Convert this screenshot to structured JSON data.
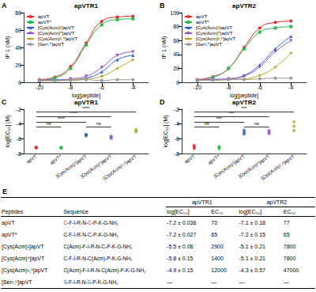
{
  "chart_data": [
    {
      "panel": "A",
      "title": "apVTR1",
      "type": "line",
      "x_label": "log[peptide]",
      "y_label": "IP 1 (nM)",
      "x": [
        -10,
        -9,
        -8,
        -7,
        -6,
        -5,
        -4
      ],
      "series": [
        {
          "name": "apVT",
          "color": "#e8262a",
          "marker": "circle",
          "values": [
            3,
            6,
            18,
            45,
            70,
            75,
            76
          ]
        },
        {
          "name": "apVT*",
          "color": "#2db84a",
          "marker": "square",
          "values": [
            2,
            5,
            16,
            43,
            66,
            72,
            73
          ]
        },
        {
          "name": "[Cys(Acm)¹]apVT",
          "color": "#2b5fd9",
          "marker": "triangle",
          "values": [
            2,
            3,
            3,
            5,
            12,
            26,
            31
          ]
        },
        {
          "name": "[Cys(Acm)⁶]apVT",
          "color": "#9b4fc9",
          "marker": "triangle-down",
          "values": [
            2,
            2,
            4,
            7,
            17,
            31,
            35
          ]
        },
        {
          "name": "[Cys(Acm)¹,⁶]apVT",
          "color": "#b8a52a",
          "marker": "diamond",
          "values": [
            2,
            2,
            3,
            4,
            7,
            16,
            26
          ]
        },
        {
          "name": "[Ser¹,⁶]apVT",
          "color": "#999999",
          "marker": "circle",
          "values": [
            2,
            2,
            2,
            3,
            2,
            3,
            3
          ]
        }
      ],
      "xlim": [
        -11,
        -3
      ],
      "xticks": [
        -10,
        -8,
        -6,
        -4
      ],
      "ylim": [
        0,
        80
      ],
      "yticks": [
        0,
        20,
        40,
        60,
        80
      ],
      "grid": false,
      "legend": "upper left"
    },
    {
      "panel": "B",
      "title": "apVTR2",
      "type": "line",
      "x_label": "log[peptide]",
      "y_label": "IP 1 (nM)",
      "x": [
        -10,
        -9,
        -8,
        -7,
        -6,
        -5,
        -4
      ],
      "series": [
        {
          "name": "apVT",
          "color": "#e8262a",
          "marker": "circle",
          "values": [
            4,
            8,
            20,
            50,
            78,
            86,
            88
          ]
        },
        {
          "name": "apVT*",
          "color": "#2db84a",
          "marker": "square",
          "values": [
            3,
            7,
            20,
            48,
            72,
            78,
            80
          ]
        },
        {
          "name": "[Cys(Acm)¹]apVT",
          "color": "#2b5fd9",
          "marker": "triangle",
          "values": [
            3,
            4,
            5,
            10,
            25,
            48,
            66
          ]
        },
        {
          "name": "[Cys(Acm)⁶]apVT",
          "color": "#9b4fc9",
          "marker": "triangle-down",
          "values": [
            3,
            4,
            5,
            9,
            22,
            44,
            60
          ]
        },
        {
          "name": "[Cys(Acm)¹,⁶]apVT",
          "color": "#b8a52a",
          "marker": "diamond",
          "values": [
            3,
            3,
            4,
            5,
            10,
            22,
            42
          ]
        },
        {
          "name": "[Ser¹,⁶]apVT",
          "color": "#999999",
          "marker": "circle",
          "values": [
            3,
            3,
            4,
            4,
            5,
            6,
            6
          ]
        }
      ],
      "xlim": [
        -11,
        -3
      ],
      "xticks": [
        -10,
        -8,
        -6,
        -4
      ],
      "ylim": [
        0,
        100
      ],
      "yticks": [
        0,
        20,
        40,
        60,
        80,
        100
      ],
      "grid": false,
      "legend": "upper left"
    },
    {
      "panel": "C",
      "title": "apVTR1",
      "type": "scatter",
      "y_label": "log[EC₅₀] (M)",
      "categories": [
        "apVT",
        "apVT*",
        "[Cys(Acm)¹]apVT",
        "[Cys(Acm)⁶]apVT",
        "[Cys(Acm)¹,⁶]apVT"
      ],
      "values": [
        [
          -7.25,
          -7.2,
          -7.15
        ],
        [
          -7.25,
          -7.2,
          -7.17
        ],
        [
          -5.6,
          -5.5,
          -5.4
        ],
        [
          -5.95,
          -5.8,
          -5.65
        ],
        [
          -5.05,
          -4.9,
          -4.75
        ]
      ],
      "colors": [
        "#e8262a",
        "#2db84a",
        "#2b5fd9",
        "#9b4fc9",
        "#b8a52a"
      ],
      "ylim": [
        -8,
        -2
      ],
      "yticks": [
        -8,
        -6,
        -4,
        -2
      ],
      "grid": false,
      "annotations": [
        {
          "from": "apVT",
          "to": "apVT*",
          "label": "ns"
        },
        {
          "from": "apVT",
          "to": "[Cys(Acm)¹]apVT",
          "label": "****"
        },
        {
          "from": "apVT",
          "to": "[Cys(Acm)⁶]apVT",
          "label": "****"
        },
        {
          "from": "apVT",
          "to": "[Cys(Acm)¹,⁶]apVT",
          "label": "****"
        },
        {
          "from": "[Cys(Acm)¹]apVT",
          "to": "[Cys(Acm)⁶]apVT",
          "label": "ns"
        }
      ]
    },
    {
      "panel": "D",
      "title": "apVTR2",
      "type": "scatter",
      "y_label": "log[EC₅₀] (M)",
      "categories": [
        "apVT",
        "apVT*",
        "[Cys(Acm)¹]apVT",
        "[Cys(Acm)⁶]apVT",
        "[Cys(Acm)¹,⁶]apVT"
      ],
      "values": [
        [
          -7.3,
          -7.1,
          -6.9
        ],
        [
          -7.35,
          -7.2,
          -7.05
        ],
        [
          -5.35,
          -5.1,
          -4.85
        ],
        [
          -5.3,
          -5.1,
          -4.9
        ],
        [
          -4.9,
          -4.3,
          -3.7
        ]
      ],
      "colors": [
        "#e8262a",
        "#2db84a",
        "#2b5fd9",
        "#9b4fc9",
        "#b8a52a"
      ],
      "ylim": [
        -8,
        -2
      ],
      "yticks": [
        -8,
        -6,
        -4,
        -2
      ],
      "grid": false,
      "annotations": [
        {
          "from": "apVT",
          "to": "apVT*",
          "label": "ns"
        },
        {
          "from": "apVT",
          "to": "[Cys(Acm)¹]apVT",
          "label": "***"
        },
        {
          "from": "apVT",
          "to": "[Cys(Acm)⁶]apVT",
          "label": "***"
        },
        {
          "from": "apVT",
          "to": "[Cys(Acm)¹,⁶]apVT",
          "label": "***"
        },
        {
          "from": "[Cys(Acm)¹]apVT",
          "to": "[Cys(Acm)⁶]apVT",
          "label": "ns"
        }
      ]
    }
  ],
  "table": {
    "panel": "E",
    "columns": [
      "Peptides",
      "Sequence"
    ],
    "groups": [
      "apVTR1",
      "apVTR2"
    ],
    "subcolumns": [
      "log[EC₅₀]",
      "EC₅₀"
    ],
    "rows": [
      {
        "peptide": "apVT",
        "sequence": [
          {
            "text": "C",
            "color": "#e8262a"
          },
          {
            "text": "-F-I-R-N-"
          },
          {
            "text": "C",
            "color": "#e8262a"
          },
          {
            "text": "-P-K-G-NH₂"
          }
        ],
        "cells": [
          "-7.2 ± 0.036",
          70,
          "-7.1 ± 0.18",
          77
        ]
      },
      {
        "peptide": "apVT*",
        "sequence": [
          {
            "text": "C-F-I-R-N-C-P-K-G-NH₂"
          }
        ],
        "cells": [
          "-7.2 ± 0.027",
          65,
          "-7.2 ± 0.15",
          65
        ]
      },
      {
        "peptide": "[Cys(Acm)¹]apVT",
        "sequence": [
          {
            "text": "C(Acm)-F-I-R-N-C-P-K-G-NH₂"
          }
        ],
        "cells": [
          "-5.5 ± 0.08",
          2900,
          "-5.1 ± 0.21",
          7800
        ]
      },
      {
        "peptide": "[Cys(Acm)⁶]apVT",
        "sequence": [
          {
            "text": "C-F-I-R-N-C(Acm)-P-K-G-NH₂"
          }
        ],
        "cells": [
          "-5.8 ± 0.15",
          1400,
          "-5.1 ± 0.21",
          7800
        ]
      },
      {
        "peptide": "[Cys(Acm)¹,⁶]apVT",
        "sequence": [
          {
            "text": "C(Acm)-F-I-R-N-C(Acm)-P-K-G-NH₂"
          }
        ],
        "cells": [
          "-4.9 ± 0.15",
          12000,
          "-4.3 ± 0.57",
          47000
        ]
      },
      {
        "peptide": "[Ser¹,⁶]apVT",
        "sequence": [
          {
            "text": "S",
            "color": "#2b5fd9"
          },
          {
            "text": "-F-I-R-N-"
          },
          {
            "text": "S",
            "color": "#2b5fd9"
          },
          {
            "text": "-P-K-G-NH₂"
          }
        ],
        "cells": [
          "—",
          "—",
          "—",
          "—"
        ]
      }
    ]
  }
}
